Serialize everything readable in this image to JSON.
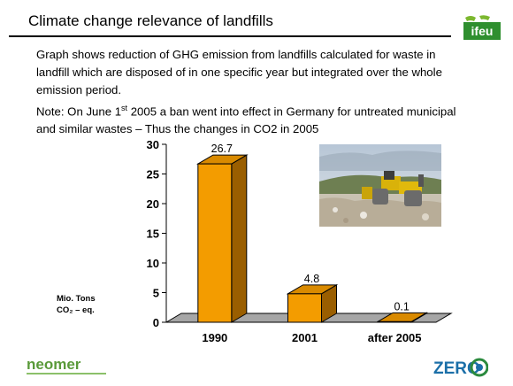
{
  "slide": {
    "title": "Climate change relevance of landfills",
    "paragraph1": "Graph shows reduction of GHG emission from landfills calculated for waste in landfill which are disposed of in one specific year but integrated over the whole emission period.",
    "note_prefix": "Note: On June 1",
    "note_sup": "st",
    "note_suffix": " 2005 a ban went into effect in Germany for untreated municipal and similar wastes – Thus the changes in CO2 in 2005"
  },
  "logos": {
    "ifeu": "ifeu",
    "neomer": "neomer",
    "zero": "ZERO"
  },
  "chart_data": {
    "type": "bar",
    "categories": [
      "1990",
      "2001",
      "after 2005"
    ],
    "values": [
      26.7,
      4.8,
      0.1
    ],
    "value_labels": [
      "26.7",
      "4.8",
      "0.1"
    ],
    "yticks": [
      "0",
      "5",
      "10",
      "15",
      "20",
      "25",
      "30"
    ],
    "ylim": [
      0,
      30
    ],
    "ylabel_line1": "Mio. Tons",
    "ylabel_line2": "CO₂ – eq.",
    "bar_color": "#f39c00",
    "grid": false,
    "style": "3d"
  }
}
